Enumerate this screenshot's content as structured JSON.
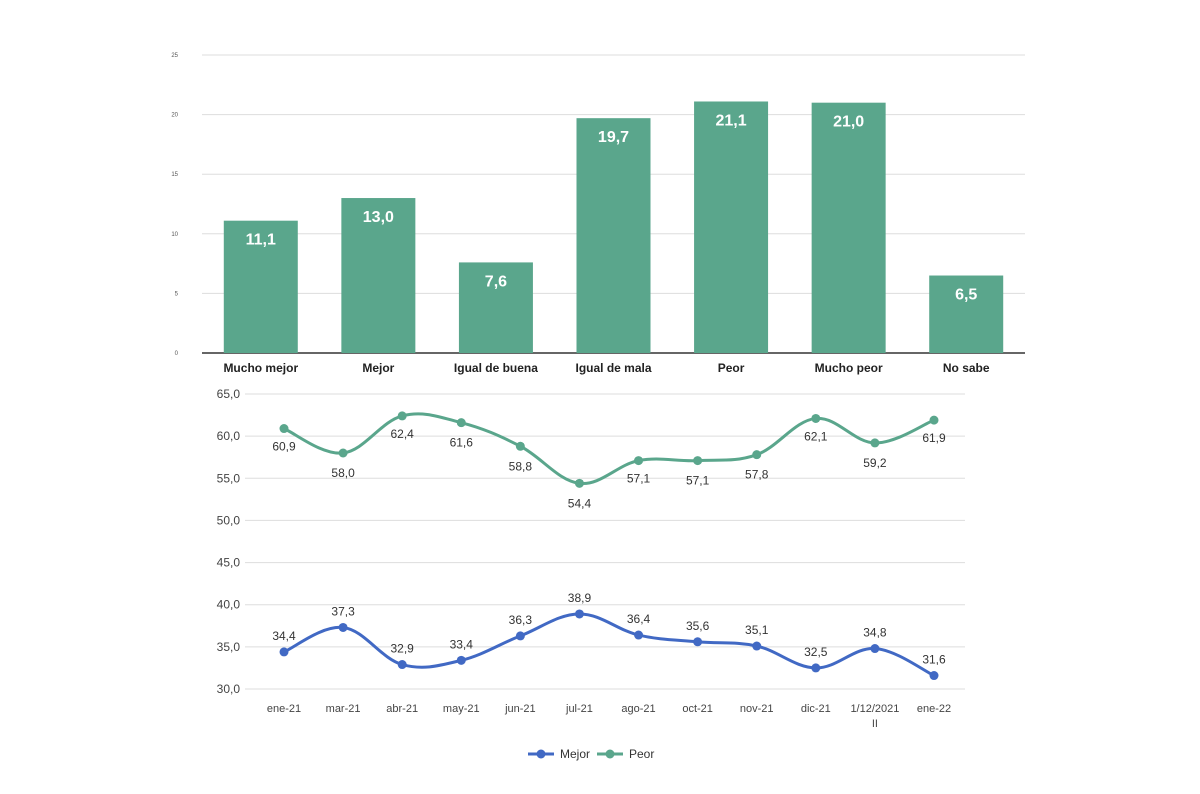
{
  "colors": {
    "bar": "#5aa68c",
    "mejor": "#4169c4",
    "peor": "#5aa68c",
    "grid": "#dddddd",
    "axis": "#333333",
    "text": "#222222"
  },
  "chart_data": [
    {
      "type": "bar",
      "categories": [
        "Mucho mejor",
        "Mejor",
        "Igual de buena",
        "Igual de mala",
        "Peor",
        "Mucho peor",
        "No sabe"
      ],
      "values": [
        11.1,
        13.0,
        7.6,
        19.7,
        21.1,
        21.0,
        6.5
      ],
      "value_labels": [
        "11,1",
        "13,0",
        "7,6",
        "19,7",
        "21,1",
        "21,0",
        "6,5"
      ],
      "ylim": [
        0,
        25
      ],
      "y_ticks": [
        "0",
        "5",
        "10",
        "15",
        "20",
        "25"
      ],
      "grid": true
    },
    {
      "type": "line",
      "categories": [
        "ene-21",
        "mar-21",
        "abr-21",
        "may-21",
        "jun-21",
        "jul-21",
        "ago-21",
        "oct-21",
        "nov-21",
        "dic-21",
        "1/12/2021 II",
        "ene-22"
      ],
      "category_labels": [
        [
          "ene-21"
        ],
        [
          "mar-21"
        ],
        [
          "abr-21"
        ],
        [
          "may-21"
        ],
        [
          "jun-21"
        ],
        [
          "jul-21"
        ],
        [
          "ago-21"
        ],
        [
          "oct-21"
        ],
        [
          "nov-21"
        ],
        [
          "dic-21"
        ],
        [
          "1/12/2021",
          "II"
        ],
        [
          "ene-22"
        ]
      ],
      "series": [
        {
          "name": "Mejor",
          "values": [
            34.4,
            37.3,
            32.9,
            33.4,
            36.3,
            38.9,
            36.4,
            35.6,
            35.1,
            32.5,
            34.8,
            31.6
          ],
          "labels": [
            "34,4",
            "37,3",
            "32,9",
            "33,4",
            "36,3",
            "38,9",
            "36,4",
            "35,6",
            "35,1",
            "32,5",
            "34,8",
            "31,6"
          ]
        },
        {
          "name": "Peor",
          "values": [
            60.9,
            58.0,
            62.4,
            61.6,
            58.8,
            54.4,
            57.1,
            57.1,
            57.8,
            62.1,
            59.2,
            61.9
          ],
          "labels": [
            "60,9",
            "58,0",
            "62,4",
            "61,6",
            "58,8",
            "54,4",
            "57,1",
            "57,1",
            "57,8",
            "62,1",
            "59,2",
            "61,9"
          ]
        }
      ],
      "ylim": [
        30,
        65
      ],
      "y_ticks": [
        "30,0",
        "35,0",
        "40,0",
        "45,0",
        "50,0",
        "55,0",
        "60,0",
        "65,0"
      ],
      "grid": true,
      "legend_position": "bottom"
    }
  ]
}
